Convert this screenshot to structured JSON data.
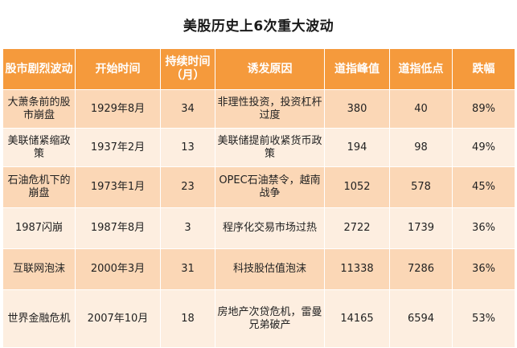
{
  "title": "美股历史上6次重大波动",
  "table": {
    "headers": [
      "股市剧烈波动",
      "开始时间",
      "持续时间（月）",
      "诱发原因",
      "道指峰值",
      "道指低点",
      "跌幅"
    ],
    "rows": [
      {
        "event": "大萧条前的股市崩盘",
        "start": "1929年8月",
        "duration": "34",
        "cause": "非理性投资，投资杠杆过度",
        "peak": "380",
        "low": "40",
        "drop": "89%"
      },
      {
        "event": "美联储紧缩政策",
        "start": "1937年2月",
        "duration": "13",
        "cause": "美联储提前收紧货币政策",
        "peak": "194",
        "low": "98",
        "drop": "49%"
      },
      {
        "event": "石油危机下的崩盘",
        "start": "1973年1月",
        "duration": "23",
        "cause": "OPEC石油禁令，越南战争",
        "peak": "1052",
        "low": "578",
        "drop": "45%"
      },
      {
        "event": "1987闪崩",
        "start": "1987年8月",
        "duration": "3",
        "cause": "程序化交易市场过热",
        "peak": "2722",
        "low": "1739",
        "drop": "36%"
      },
      {
        "event": "互联网泡沫",
        "start": "2000年3月",
        "duration": "31",
        "cause": "科技股估值泡沫",
        "peak": "11338",
        "low": "7286",
        "drop": "36%"
      },
      {
        "event": "世界金融危机",
        "start": "2007年10月",
        "duration": "18",
        "cause": "房地产次贷危机，雷曼兄弟破产",
        "peak": "14165",
        "low": "6594",
        "drop": "53%"
      }
    ]
  },
  "colors": {
    "header_bg": "#f59a3c",
    "row_dark": "#fbd7b6",
    "row_light": "#fdeee0"
  }
}
